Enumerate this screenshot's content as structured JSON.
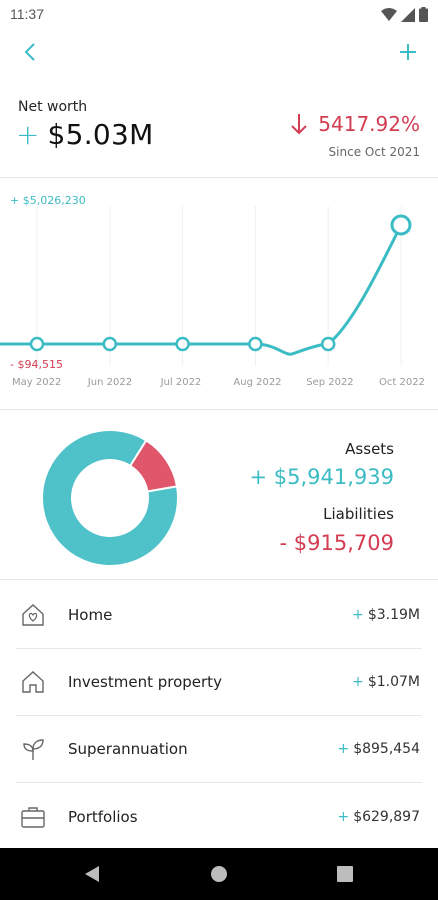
{
  "status_bar": {
    "time": "11:37"
  },
  "summary": {
    "label": "Net worth",
    "sign": "+",
    "value": "$5.03M",
    "change": "5417.92%",
    "since": "Since Oct 2021"
  },
  "chart_data": {
    "type": "line",
    "x": [
      "May 2022",
      "Jun 2022",
      "Jul 2022",
      "Aug 2022",
      "Sep 2022",
      "Oct 2022"
    ],
    "series": [
      {
        "values": [
          -94515,
          -94515,
          -94515,
          -94515,
          -94515,
          5026230
        ]
      }
    ],
    "ymax_label": "+ $5,026,230",
    "ymin_label": "- $94,515",
    "ylim": [
      -94515,
      5026230
    ],
    "grid": "vertical",
    "colors": {
      "line": "#3bbcc4",
      "max_label": "#3bbcc4",
      "min_label": "#d43c52"
    }
  },
  "breakdown": {
    "assets_label": "Assets",
    "assets_value": "+ $5,941,939",
    "liabilities_label": "Liabilities",
    "liabilities_value": "-  $915,709",
    "donut": {
      "assets": 5941939,
      "liabilities": 915709
    },
    "colors": {
      "assets": "#4fc1c8",
      "liabilities": "#e0566a"
    }
  },
  "list": {
    "items": [
      {
        "icon": "home-heart-icon",
        "label": "Home",
        "sign": "+",
        "value": "$3.19M"
      },
      {
        "icon": "house-icon",
        "label": "Investment property",
        "sign": "+",
        "value": "$1.07M"
      },
      {
        "icon": "sprout-icon",
        "label": "Superannuation",
        "sign": "+",
        "value": "$895,454"
      },
      {
        "icon": "briefcase-icon",
        "label": "Portfolios",
        "sign": "+",
        "value": "$629,897"
      }
    ]
  },
  "colors": {
    "accent": "#3bbcc4",
    "negative": "#d43c52"
  }
}
